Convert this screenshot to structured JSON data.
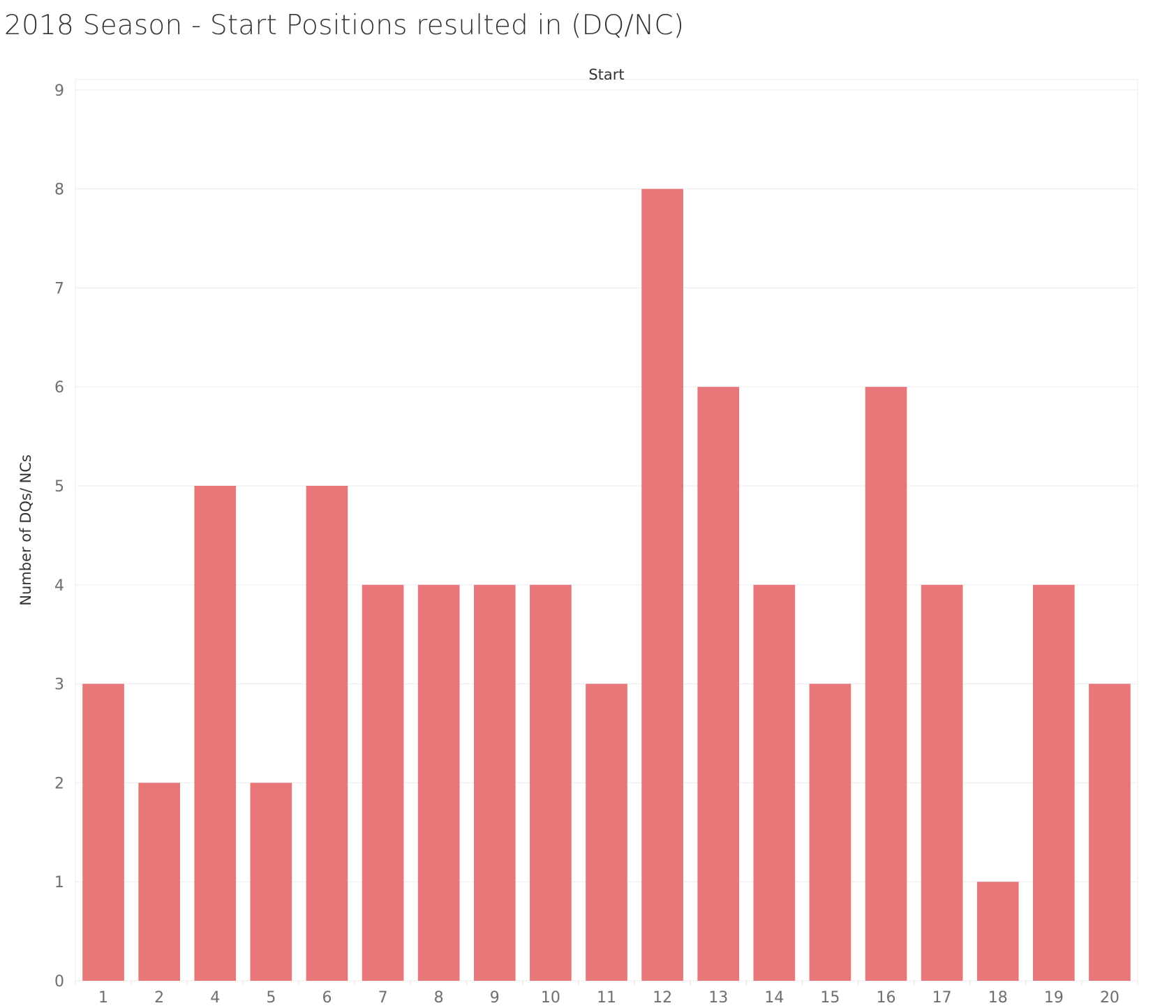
{
  "chart_data": {
    "type": "bar",
    "title": "2018 Season - Start Positions resulted in (DQ/NC)",
    "xlabel": "Start",
    "ylabel": "Number of DQs/ NCs",
    "categories": [
      "1",
      "2",
      "4",
      "5",
      "6",
      "7",
      "8",
      "9",
      "10",
      "11",
      "12",
      "13",
      "14",
      "15",
      "16",
      "17",
      "18",
      "19",
      "20"
    ],
    "values": [
      3,
      2,
      5,
      2,
      5,
      4,
      4,
      4,
      4,
      3,
      8,
      6,
      4,
      3,
      6,
      4,
      1,
      4,
      3
    ],
    "ylim": [
      0,
      9
    ],
    "yticks": [
      "0",
      "1",
      "2",
      "3",
      "4",
      "5",
      "6",
      "7",
      "8",
      "9"
    ],
    "grid": true,
    "legend": "none",
    "colors": {
      "bar": "#e8777a",
      "grid": "#efefef",
      "tick_text": "#6e6e6e",
      "title_text": "#333333"
    },
    "x_axis_position": "top"
  }
}
